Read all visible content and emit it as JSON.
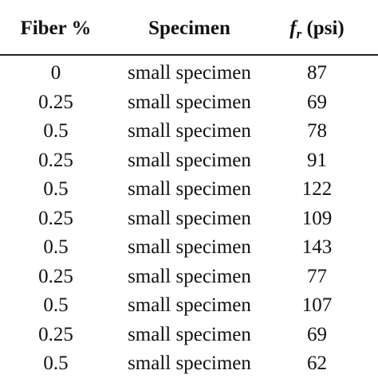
{
  "table": {
    "headers": {
      "fiber": "Fiber %",
      "specimen": "Specimen",
      "fr_symbol": "f",
      "fr_subscript": "r",
      "fr_unit": " (psi)"
    },
    "rows": [
      {
        "fiber": "0",
        "specimen": "small specimen",
        "fr": "87"
      },
      {
        "fiber": "0.25",
        "specimen": "small specimen",
        "fr": "69"
      },
      {
        "fiber": "0.5",
        "specimen": "small specimen",
        "fr": "78"
      },
      {
        "fiber": "0.25",
        "specimen": "small specimen",
        "fr": "91"
      },
      {
        "fiber": "0.5",
        "specimen": "small specimen",
        "fr": "122"
      },
      {
        "fiber": "0.25",
        "specimen": "small specimen",
        "fr": "109"
      },
      {
        "fiber": "0.5",
        "specimen": "small specimen",
        "fr": "143"
      },
      {
        "fiber": "0.25",
        "specimen": "small specimen",
        "fr": "77"
      },
      {
        "fiber": "0.5",
        "specimen": "small specimen",
        "fr": "107"
      },
      {
        "fiber": "0.25",
        "specimen": "small specimen",
        "fr": "69"
      },
      {
        "fiber": "0.5",
        "specimen": "small specimen",
        "fr": "62"
      }
    ]
  }
}
